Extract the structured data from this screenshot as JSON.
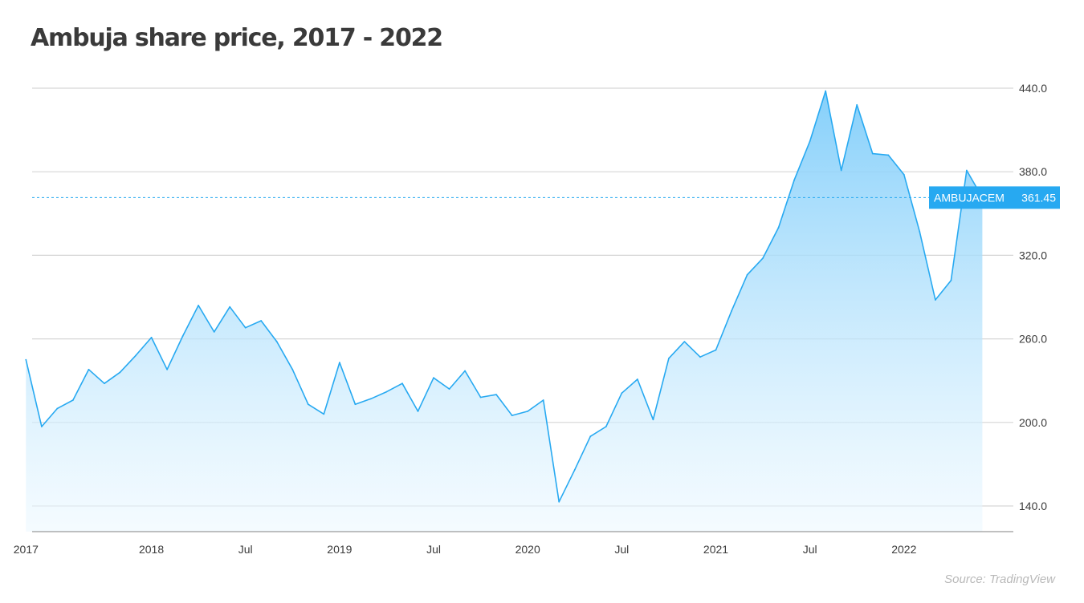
{
  "chart_data": {
    "type": "area",
    "title": "Ambuja share price, 2017 - 2022",
    "source": "Source: TradingView",
    "series": [
      {
        "name": "AMBUJACEM",
        "color": "#27a9f1",
        "x": [
          "2017-05",
          "2017-06",
          "2017-07",
          "2017-08",
          "2017-09",
          "2017-10",
          "2017-11",
          "2017-12",
          "2018-01",
          "2018-02",
          "2018-03",
          "2018-04",
          "2018-05",
          "2018-06",
          "2018-07",
          "2018-08",
          "2018-09",
          "2018-10",
          "2018-11",
          "2018-12",
          "2019-01",
          "2019-02",
          "2019-03",
          "2019-04",
          "2019-05",
          "2019-06",
          "2019-07",
          "2019-08",
          "2019-09",
          "2019-10",
          "2019-11",
          "2019-12",
          "2020-01",
          "2020-02",
          "2020-03",
          "2020-04",
          "2020-05",
          "2020-06",
          "2020-07",
          "2020-08",
          "2020-09",
          "2020-10",
          "2020-11",
          "2020-12",
          "2021-01",
          "2021-02",
          "2021-03",
          "2021-04",
          "2021-05",
          "2021-06",
          "2021-07",
          "2021-08",
          "2021-09",
          "2021-10",
          "2021-11",
          "2021-12",
          "2022-01",
          "2022-02",
          "2022-03",
          "2022-04",
          "2022-05",
          "2022-06"
        ],
        "values": [
          245,
          197,
          210,
          216,
          238,
          228,
          236,
          248,
          261,
          238,
          262,
          284,
          265,
          283,
          268,
          273,
          258,
          238,
          213,
          206,
          243,
          213,
          217,
          222,
          228,
          208,
          232,
          224,
          237,
          218,
          220,
          205,
          208,
          216,
          143,
          166,
          190,
          197,
          221,
          231,
          202,
          246,
          258,
          247,
          252,
          280,
          306,
          318,
          340,
          374,
          402,
          438,
          381,
          428,
          393,
          392,
          378,
          337,
          288,
          302,
          381,
          361.45
        ]
      }
    ],
    "last_value": "361.45",
    "price_label": "AMBUJACEM",
    "ylim": [
      120,
      447
    ],
    "y_ticks": [
      "440.0",
      "380.0",
      "320.0",
      "260.0",
      "200.0",
      "140.0"
    ],
    "y_tick_values": [
      440,
      380,
      320,
      260,
      200,
      140
    ],
    "x_tick_labels": [
      "2017",
      "2018",
      "Jul",
      "2019",
      "Jul",
      "2020",
      "Jul",
      "2021",
      "Jul",
      "2022"
    ],
    "x_tick_dates": [
      "2017-05",
      "2018-01",
      "2018-07",
      "2019-01",
      "2019-07",
      "2020-01",
      "2020-07",
      "2021-01",
      "2021-07",
      "2022-01"
    ],
    "grid": true,
    "fill_color": "#87d0fb"
  }
}
